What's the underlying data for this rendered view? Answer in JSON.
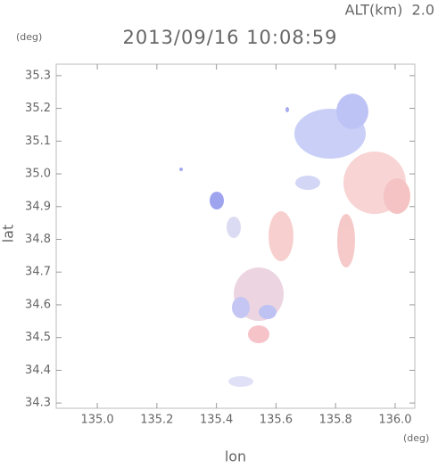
{
  "chart_data": {
    "type": "scatter",
    "title": "2013/09/16 10:08:59",
    "annotation": "ALT(km)  2.0",
    "x_unit": "(deg)",
    "y_unit": "(deg)",
    "x_label": "lon",
    "y_label": "lat",
    "xlim": [
      134.862,
      136.066
    ],
    "ylim": [
      34.284,
      35.335
    ],
    "xticks": [
      {
        "value": 135.0,
        "label": "135.0"
      },
      135.2,
      135.4,
      135.6,
      135.8,
      {
        "value": 136.0,
        "label": "136.0"
      }
    ],
    "yticks": [
      34.3,
      34.4,
      34.5,
      34.6,
      34.7,
      34.8,
      34.9,
      {
        "value": 35.0,
        "label": "35.0"
      },
      35.1,
      35.2,
      35.3
    ]
  }
}
